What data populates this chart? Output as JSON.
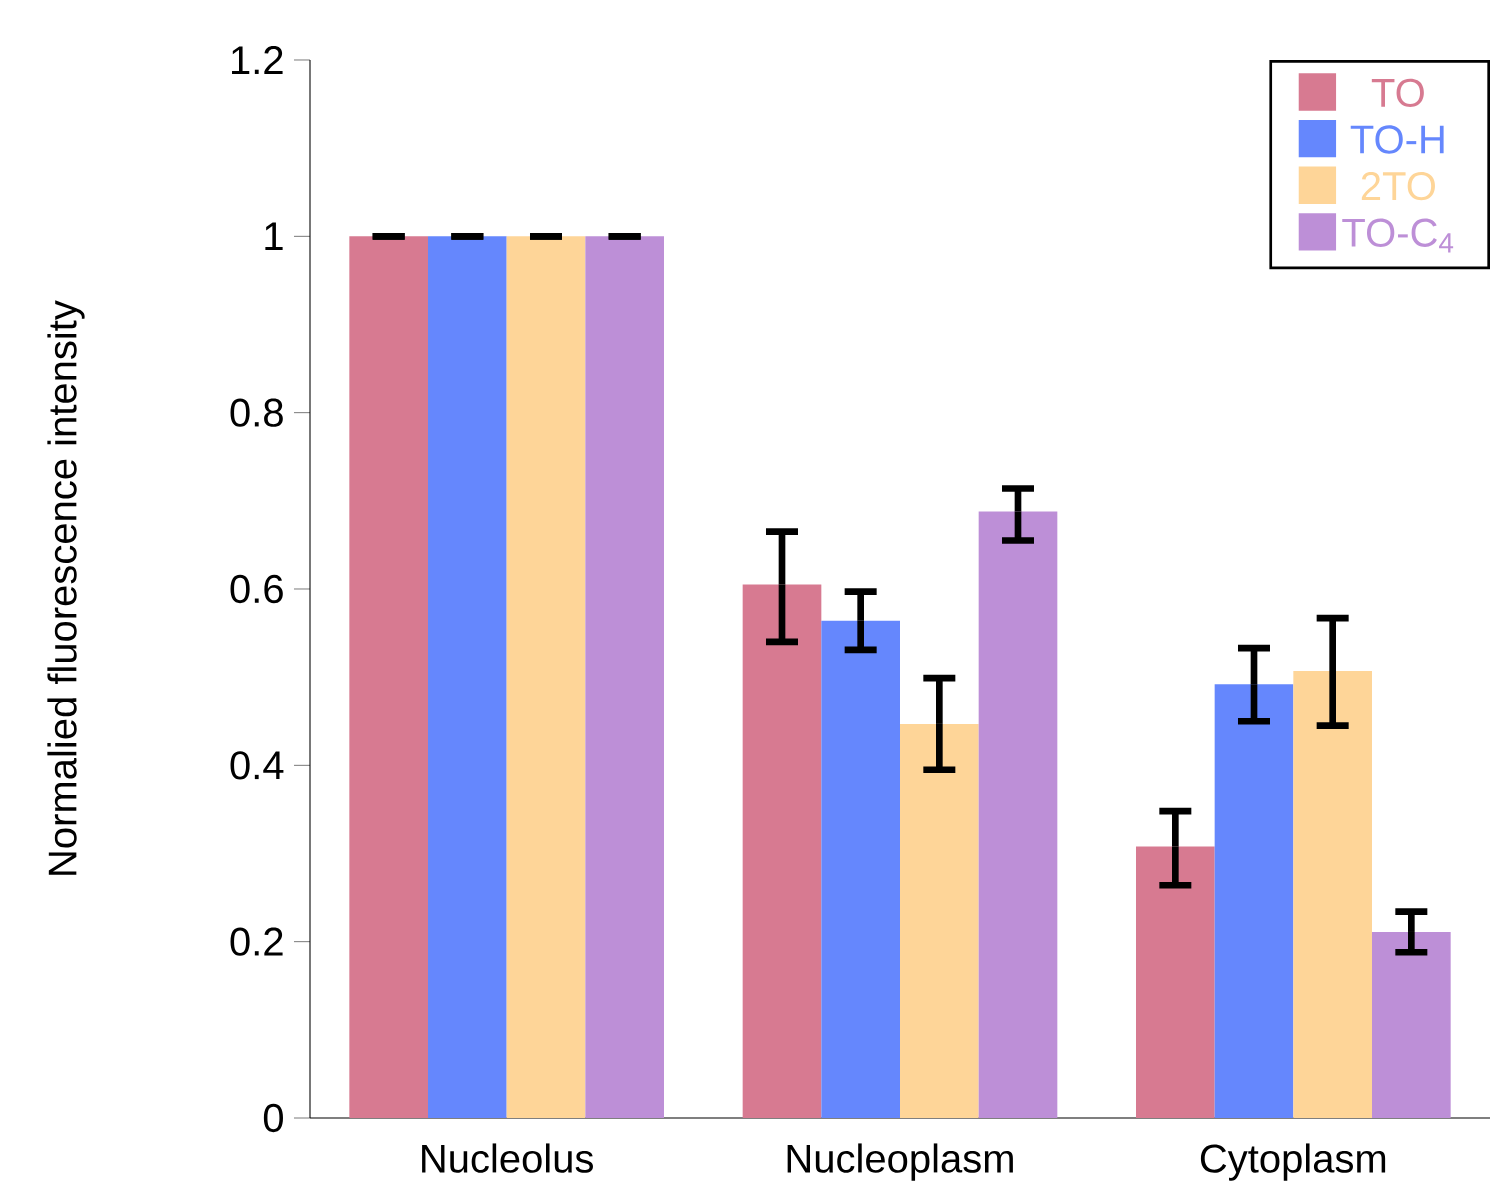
{
  "chart_data": {
    "type": "bar",
    "ylabel": "Normalied fluorescence intensity",
    "categories": [
      "Nucleolus",
      "Nucleoplasm",
      "Cytoplasm"
    ],
    "series": [
      {
        "name": "TO",
        "color": "#d77a91",
        "values": [
          1,
          0.605,
          0.308
        ],
        "errors": [
          [
            1,
            1
          ],
          [
            0.54,
            0.665
          ],
          [
            0.264,
            0.348
          ]
        ]
      },
      {
        "name": "TO-H",
        "color": "#6587fd",
        "values": [
          1,
          0.564,
          0.492
        ],
        "errors": [
          [
            1,
            1
          ],
          [
            0.531,
            0.597
          ],
          [
            0.45,
            0.533
          ]
        ]
      },
      {
        "name": "2TO",
        "color": "#fed598",
        "values": [
          1,
          0.447,
          0.507
        ],
        "errors": [
          [
            1,
            1
          ],
          [
            0.395,
            0.499
          ],
          [
            0.445,
            0.567
          ]
        ]
      },
      {
        "name": "TO-C$_{4}$",
        "color": "#bd8fd7",
        "values": [
          1,
          0.688,
          0.211
        ],
        "errors": [
          [
            1,
            1
          ],
          [
            0.655,
            0.714
          ],
          [
            0.188,
            0.234
          ]
        ]
      }
    ],
    "ylim": [
      0,
      1.2
    ],
    "yticks": [
      0,
      0.2,
      0.4,
      0.6,
      0.8,
      1,
      1.2
    ],
    "legend": "top right",
    "grid": false
  }
}
